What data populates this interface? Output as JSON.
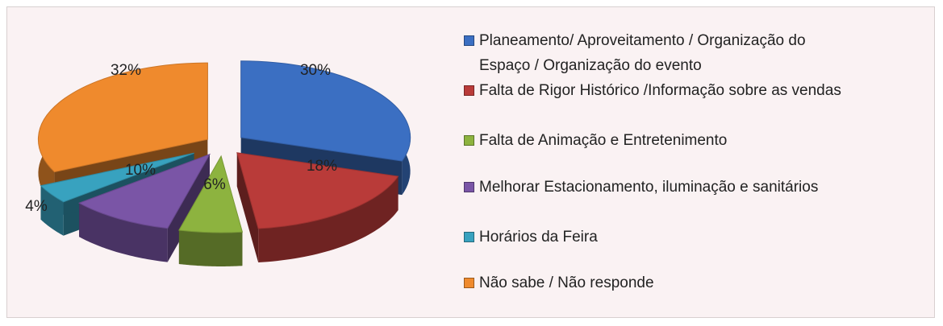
{
  "chart_data": {
    "type": "pie",
    "categories": [
      "Planeamento/ Aproveitamento / Organização do Espaço / Organização do evento",
      "Falta de Rigor Histórico /Informação sobre as vendas",
      "Falta de Animação e Entretenimento",
      "Melhorar Estacionamento, iluminação e sanitários",
      "Horários da Feira",
      "Não sabe / Não responde"
    ],
    "values": [
      30,
      18,
      6,
      10,
      4,
      32
    ],
    "value_labels": [
      "30%",
      "18%",
      "6%",
      "10%",
      "4%",
      "32%"
    ],
    "colors": [
      "#3b6fc2",
      "#b93b39",
      "#8db33f",
      "#7a55a6",
      "#38a2bf",
      "#ef8a2d"
    ],
    "legend": "right"
  }
}
